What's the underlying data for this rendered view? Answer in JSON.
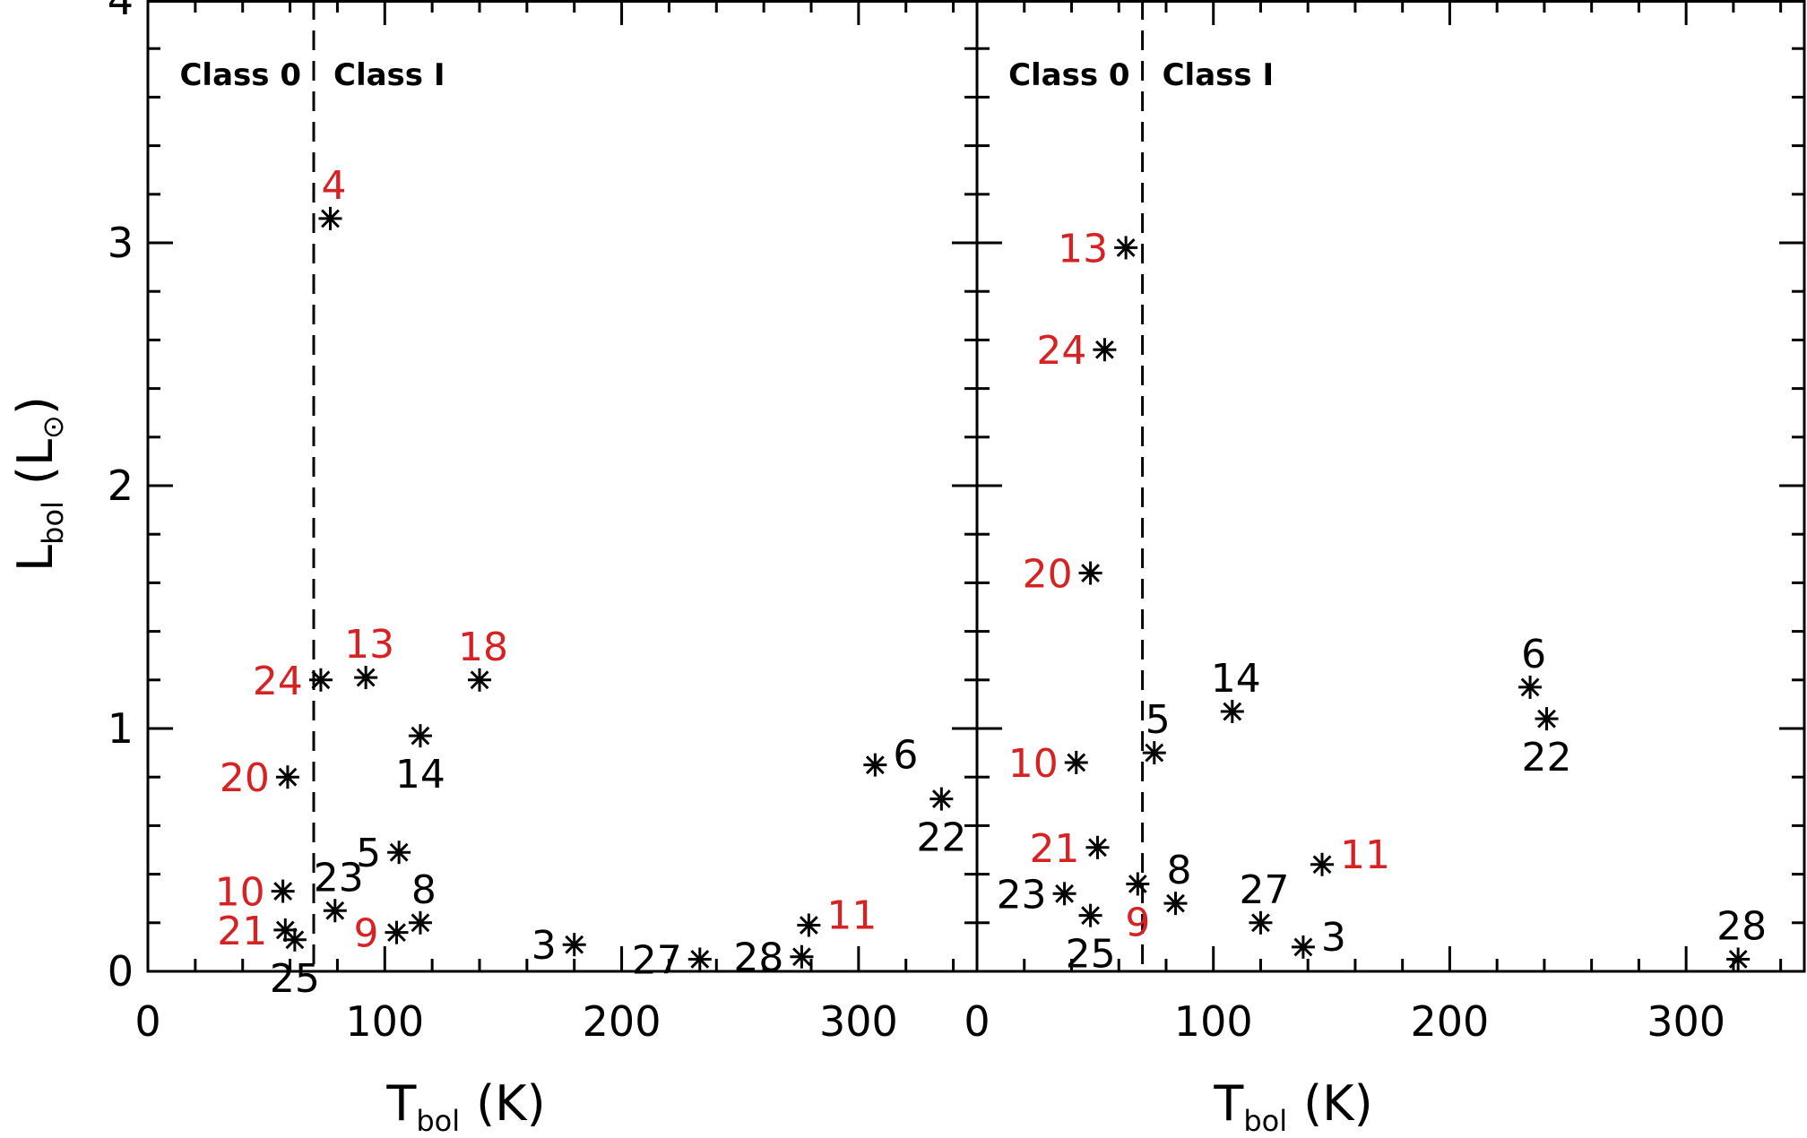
{
  "chart_data": [
    {
      "type": "scatter",
      "panel": "left",
      "xlabel": {
        "main": "T",
        "sub": "bol",
        "unit": "(K)"
      },
      "ylabel": {
        "main": "L",
        "sub": "bol",
        "unit_main": "(L",
        "unit_sub": "⊙",
        "unit_close": ")"
      },
      "xlim": [
        0,
        350
      ],
      "ylim": [
        0,
        4
      ],
      "xticks": [
        0,
        100,
        200,
        300
      ],
      "xtick_labels": [
        "0",
        "100",
        "200",
        "300"
      ],
      "yticks": [
        0,
        1,
        2,
        3,
        4
      ],
      "ytick_labels": [
        "0",
        "1",
        "2",
        "3",
        "4"
      ],
      "divider_x": 70,
      "region_labels": {
        "left": "Class 0",
        "right": "Class I"
      },
      "highlight_color": "#d62222",
      "default_color": "#000000",
      "points": [
        {
          "label": "4",
          "x": 77,
          "y": 3.1,
          "red": true,
          "pos": "above"
        },
        {
          "label": "24",
          "x": 73,
          "y": 1.2,
          "red": true,
          "pos": "left"
        },
        {
          "label": "13",
          "x": 92,
          "y": 1.21,
          "red": true,
          "pos": "above"
        },
        {
          "label": "18",
          "x": 140,
          "y": 1.2,
          "red": true,
          "pos": "above"
        },
        {
          "label": "14",
          "x": 115,
          "y": 0.97,
          "red": false,
          "pos": "below"
        },
        {
          "label": "20",
          "x": 59,
          "y": 0.8,
          "red": true,
          "pos": "left"
        },
        {
          "label": "6",
          "x": 307,
          "y": 0.85,
          "red": false,
          "pos": "right"
        },
        {
          "label": "22",
          "x": 335,
          "y": 0.71,
          "red": false,
          "pos": "below"
        },
        {
          "label": "5",
          "x": 106,
          "y": 0.49,
          "red": false,
          "pos": "left"
        },
        {
          "label": "23",
          "x": 79,
          "y": 0.25,
          "red": false,
          "pos": "above"
        },
        {
          "label": "10",
          "x": 57,
          "y": 0.33,
          "red": true,
          "pos": "left"
        },
        {
          "label": "8",
          "x": 115,
          "y": 0.2,
          "red": false,
          "pos": "above"
        },
        {
          "label": "9",
          "x": 105,
          "y": 0.16,
          "red": true,
          "pos": "left"
        },
        {
          "label": "21",
          "x": 58,
          "y": 0.17,
          "red": true,
          "pos": "left"
        },
        {
          "label": "25",
          "x": 62,
          "y": 0.13,
          "red": false,
          "pos": "below"
        },
        {
          "label": "3",
          "x": 180,
          "y": 0.11,
          "red": false,
          "pos": "left"
        },
        {
          "label": "27",
          "x": 233,
          "y": 0.05,
          "red": false,
          "pos": "left"
        },
        {
          "label": "28",
          "x": 276,
          "y": 0.06,
          "red": false,
          "pos": "left"
        },
        {
          "label": "11",
          "x": 279,
          "y": 0.19,
          "red": true,
          "pos": "right"
        }
      ]
    },
    {
      "type": "scatter",
      "panel": "right",
      "xlabel": {
        "main": "T",
        "sub": "bol",
        "unit": "(K)"
      },
      "xlim": [
        0,
        350
      ],
      "ylim": [
        0,
        4
      ],
      "xticks": [
        0,
        100,
        200,
        300
      ],
      "xtick_labels": [
        "0",
        "100",
        "200",
        "300"
      ],
      "yticks": [
        0,
        1,
        2,
        3,
        4
      ],
      "divider_x": 70,
      "region_labels": {
        "left": "Class 0",
        "right": "Class I"
      },
      "highlight_color": "#d62222",
      "default_color": "#000000",
      "points": [
        {
          "label": "13",
          "x": 63,
          "y": 2.98,
          "red": true,
          "pos": "left"
        },
        {
          "label": "24",
          "x": 54,
          "y": 2.56,
          "red": true,
          "pos": "left"
        },
        {
          "label": "20",
          "x": 48,
          "y": 1.64,
          "red": true,
          "pos": "left"
        },
        {
          "label": "14",
          "x": 108,
          "y": 1.07,
          "red": false,
          "pos": "above"
        },
        {
          "label": "6",
          "x": 234,
          "y": 1.17,
          "red": false,
          "pos": "above"
        },
        {
          "label": "22",
          "x": 241,
          "y": 1.04,
          "red": false,
          "pos": "below"
        },
        {
          "label": "5",
          "x": 75,
          "y": 0.9,
          "red": false,
          "pos": "above"
        },
        {
          "label": "10",
          "x": 42,
          "y": 0.86,
          "red": true,
          "pos": "left"
        },
        {
          "label": "21",
          "x": 51,
          "y": 0.51,
          "red": true,
          "pos": "left"
        },
        {
          "label": "23",
          "x": 37,
          "y": 0.32,
          "red": false,
          "pos": "left"
        },
        {
          "label": "25",
          "x": 48,
          "y": 0.23,
          "red": false,
          "pos": "below"
        },
        {
          "label": "9",
          "x": 68,
          "y": 0.36,
          "red": true,
          "pos": "below"
        },
        {
          "label": "8",
          "x": 84,
          "y": 0.28,
          "red": false,
          "pos": "above"
        },
        {
          "label": "27",
          "x": 120,
          "y": 0.2,
          "red": false,
          "pos": "above"
        },
        {
          "label": "3",
          "x": 138,
          "y": 0.1,
          "red": false,
          "pos": "right"
        },
        {
          "label": "11",
          "x": 146,
          "y": 0.44,
          "red": true,
          "pos": "right"
        },
        {
          "label": "28",
          "x": 322,
          "y": 0.05,
          "red": false,
          "pos": "above"
        }
      ]
    }
  ]
}
